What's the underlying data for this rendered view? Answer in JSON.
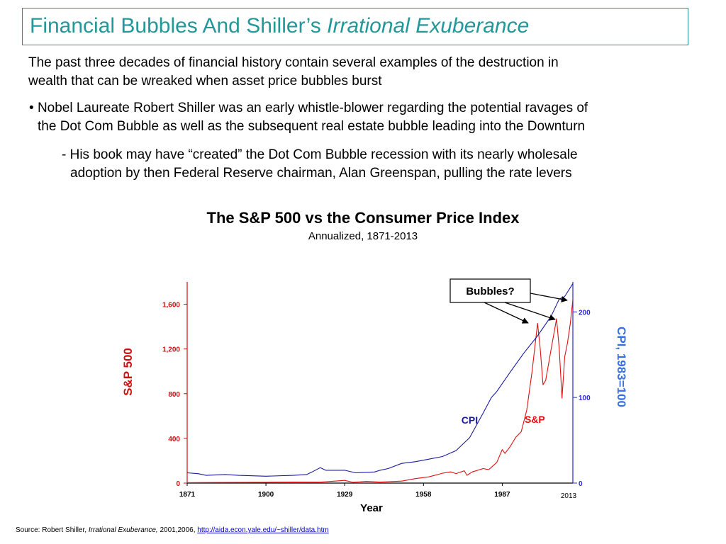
{
  "slide": {
    "title_main": "Financial Bubbles And Shiller’s ",
    "title_italic": "Irrational Exuberance",
    "intro": [
      "The past three decades of financial history contain several examples of the destruction in",
      "wealth that can be wreaked when asset price bubbles burst"
    ],
    "bullet_marker": "•",
    "bullet": [
      "Nobel Laureate Robert Shiller was an early whistle-blower regarding the potential ravages of",
      "the Dot Com Bubble as well as the subsequent real estate bubble leading into the Downturn"
    ],
    "sub_marker": "-",
    "sub_bullet": [
      "His book may have “created” the Dot Com Bubble recession with its nearly wholesale",
      "adoption by then Federal Reserve chairman, Alan Greenspan, pulling the rate levers"
    ],
    "source_prefix": "Source: Robert Shiller, ",
    "source_italic": "Irrational Exuberance,",
    "source_years": " 2001,2006,  ",
    "source_link": "http://aida.econ.yale.edu/~shiller/data.htm"
  },
  "chart_data": {
    "type": "line",
    "title": "The S&P 500 vs the Consumer Price Index",
    "subtitle": "Annualized, 1871-2013",
    "xlabel": "Year",
    "ylabel_left": "S&P 500",
    "ylabel_right": "CPI, 1983=100",
    "x_ticks": [
      "1871",
      "1900",
      "1929",
      "1958",
      "1987"
    ],
    "x_end_label": "2013",
    "xlim": [
      1871,
      2013
    ],
    "y_left_ticks": [
      "0",
      "400",
      "800",
      "1,200",
      "1,600"
    ],
    "y_left_lim": [
      0,
      1800
    ],
    "y_right_ticks": [
      "0",
      "100",
      "200"
    ],
    "y_right_lim": [
      0,
      235
    ],
    "colors": {
      "sp": "#e01010",
      "cpi": "#1a1aa0",
      "left_axis": "#d01010",
      "right_axis": "#2a2ad0",
      "right_label": "#3a6fe0"
    },
    "series": [
      {
        "key": "sp",
        "name": "S&P",
        "axis": "left",
        "x": [
          1871,
          1880,
          1890,
          1900,
          1910,
          1920,
          1929,
          1932,
          1937,
          1942,
          1950,
          1955,
          1960,
          1965,
          1968,
          1970,
          1973,
          1974,
          1976,
          1980,
          1982,
          1985,
          1987,
          1988,
          1990,
          1992,
          1994,
          1996,
          1998,
          2000,
          2001,
          2002,
          2003,
          2005,
          2007,
          2008,
          2009,
          2010,
          2011,
          2012,
          2013
        ],
        "y": [
          4,
          5,
          6,
          7,
          9,
          8,
          24,
          7,
          15,
          9,
          18,
          40,
          56,
          88,
          100,
          85,
          110,
          70,
          100,
          130,
          120,
          185,
          300,
          265,
          330,
          410,
          460,
          650,
          1000,
          1430,
          1200,
          880,
          920,
          1200,
          1470,
          1200,
          760,
          1130,
          1250,
          1420,
          1640
        ]
      },
      {
        "key": "cpi",
        "name": "CPI",
        "axis": "right",
        "x": [
          1871,
          1875,
          1878,
          1885,
          1890,
          1900,
          1910,
          1915,
          1917,
          1920,
          1922,
          1929,
          1933,
          1940,
          1942,
          1945,
          1950,
          1955,
          1960,
          1965,
          1970,
          1975,
          1980,
          1983,
          1985,
          1990,
          1995,
          2000,
          2005,
          2008,
          2010,
          2013
        ],
        "y": [
          12,
          11,
          9,
          10,
          9,
          8,
          9,
          10,
          13,
          18,
          15,
          15,
          12,
          13,
          15,
          17,
          23,
          25,
          28,
          31,
          38,
          53,
          82,
          100,
          107,
          130,
          152,
          172,
          195,
          215,
          218,
          233
        ]
      }
    ],
    "annotations": [
      {
        "text": "Bubbles?",
        "type": "callout",
        "targets": [
          2000,
          2007,
          2013
        ]
      },
      {
        "text": "CPI",
        "series": "cpi"
      },
      {
        "text": "S&P",
        "series": "sp"
      }
    ],
    "grid": false,
    "legend": "inline labels"
  }
}
